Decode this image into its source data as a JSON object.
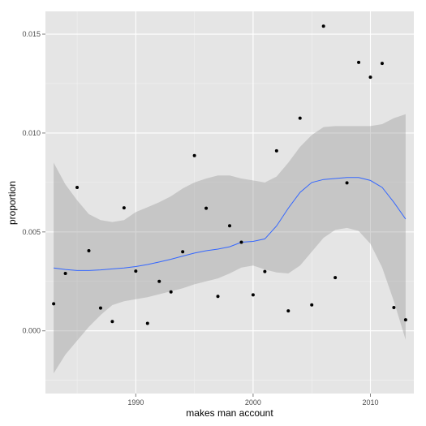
{
  "chart_data": {
    "type": "scatter",
    "xlabel": "makes man account",
    "ylabel": "proportion",
    "xlim": [
      1982.3,
      2013.7
    ],
    "ylim": [
      -0.00317,
      0.01615
    ],
    "x_ticks": [
      1990,
      2000,
      2010
    ],
    "x_tick_labels": [
      "1990",
      "2000",
      "2010"
    ],
    "y_ticks": [
      0.0,
      0.005,
      0.01,
      0.015
    ],
    "y_tick_labels": [
      "0.000",
      "0.005",
      "0.010",
      "0.015"
    ],
    "grid": true,
    "background": "#E5E5E5",
    "colors": {
      "points": "#000000",
      "smooth_line": "#3366FF",
      "ribbon": "#999999",
      "grid": "#FFFFFF"
    },
    "points": {
      "x": [
        1983,
        1984,
        1985,
        1986,
        1987,
        1988,
        1989,
        1990,
        1991,
        1992,
        1993,
        1994,
        1995,
        1996,
        1997,
        1998,
        1999,
        2000,
        2001,
        2002,
        2003,
        2004,
        2005,
        2006,
        2007,
        2008,
        2009,
        2010,
        2011,
        2012,
        2013
      ],
      "y": [
        0.00137,
        0.0029,
        0.00725,
        0.00405,
        0.00115,
        0.00047,
        0.00622,
        0.00302,
        0.00038,
        0.0025,
        0.00197,
        0.004,
        0.00886,
        0.0062,
        0.00174,
        0.00531,
        0.00448,
        0.00182,
        0.003,
        0.0091,
        0.00101,
        0.01075,
        0.00131,
        0.0154,
        0.00269,
        0.00748,
        0.01357,
        0.01282,
        0.01352,
        0.00118,
        0.00056
      ]
    },
    "smooth": {
      "x": [
        1983,
        1984,
        1985,
        1986,
        1987,
        1988,
        1989,
        1990,
        1991,
        1992,
        1993,
        1994,
        1995,
        1996,
        1997,
        1998,
        1999,
        2000,
        2001,
        2002,
        2003,
        2004,
        2005,
        2006,
        2007,
        2008,
        2009,
        2010,
        2011,
        2012,
        2013
      ],
      "fit": [
        0.00318,
        0.0031,
        0.00305,
        0.00305,
        0.00308,
        0.00313,
        0.00318,
        0.00325,
        0.00335,
        0.00348,
        0.00362,
        0.00378,
        0.00393,
        0.00405,
        0.00413,
        0.00425,
        0.00448,
        0.00452,
        0.00465,
        0.0053,
        0.0062,
        0.007,
        0.0075,
        0.00765,
        0.0077,
        0.00775,
        0.00775,
        0.0076,
        0.00725,
        0.0065,
        0.00565
      ],
      "lower": [
        -0.00215,
        -0.0012,
        -0.0005,
        0.0002,
        0.0008,
        0.0013,
        0.0015,
        0.0016,
        0.0017,
        0.00185,
        0.002,
        0.00215,
        0.00235,
        0.0025,
        0.00265,
        0.0029,
        0.0032,
        0.0033,
        0.0031,
        0.00295,
        0.0029,
        0.0033,
        0.004,
        0.0047,
        0.0051,
        0.0052,
        0.00505,
        0.0044,
        0.0032,
        0.0015,
        -0.00045
      ],
      "upper": [
        0.0085,
        0.0074,
        0.0066,
        0.0059,
        0.0056,
        0.0055,
        0.0056,
        0.006,
        0.00625,
        0.0065,
        0.0068,
        0.0072,
        0.0075,
        0.0077,
        0.00785,
        0.00785,
        0.0077,
        0.0076,
        0.0075,
        0.0078,
        0.0085,
        0.0093,
        0.0099,
        0.0103,
        0.01035,
        0.01035,
        0.01035,
        0.01035,
        0.01045,
        0.01075,
        0.01095
      ]
    }
  }
}
